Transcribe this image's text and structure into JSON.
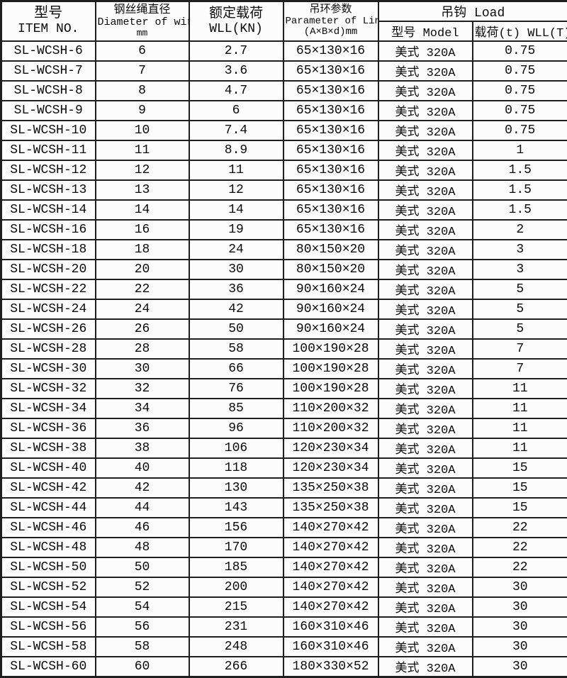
{
  "colors": {
    "border": "#1f1f1f",
    "background": "#fcfcfc",
    "text": "#0a0a0a"
  },
  "table": {
    "header": {
      "item_no": {
        "line1": "型号",
        "line2": "ITEM NO."
      },
      "diameter": {
        "line1": "钢丝绳直径",
        "line2": "Diameter of wire",
        "line3": "mm"
      },
      "wll": {
        "line1": "额定载荷",
        "line2": "WLL(KN)"
      },
      "link": {
        "line1": "吊环参数",
        "line2": "Parameter of Link",
        "line3": "(A×B×d)mm"
      },
      "hook_group": "吊钩 Load",
      "hook_model": "型号 Model",
      "hook_load": "载荷(t) WLL(T)"
    },
    "rows": [
      {
        "item_no": "SL-WCSH-6",
        "diameter": "6",
        "wll_kn": "2.7",
        "link_params": "65×130×16",
        "hook_model": "美式 320A",
        "hook_load": "0.75"
      },
      {
        "item_no": "SL-WCSH-7",
        "diameter": "7",
        "wll_kn": "3.6",
        "link_params": "65×130×16",
        "hook_model": "美式 320A",
        "hook_load": "0.75"
      },
      {
        "item_no": "SL-WCSH-8",
        "diameter": "8",
        "wll_kn": "4.7",
        "link_params": "65×130×16",
        "hook_model": "美式 320A",
        "hook_load": "0.75"
      },
      {
        "item_no": "SL-WCSH-9",
        "diameter": "9",
        "wll_kn": "6",
        "link_params": "65×130×16",
        "hook_model": "美式 320A",
        "hook_load": "0.75"
      },
      {
        "item_no": "SL-WCSH-10",
        "diameter": "10",
        "wll_kn": "7.4",
        "link_params": "65×130×16",
        "hook_model": "美式 320A",
        "hook_load": "0.75"
      },
      {
        "item_no": "SL-WCSH-11",
        "diameter": "11",
        "wll_kn": "8.9",
        "link_params": "65×130×16",
        "hook_model": "美式 320A",
        "hook_load": "1"
      },
      {
        "item_no": "SL-WCSH-12",
        "diameter": "12",
        "wll_kn": "11",
        "link_params": "65×130×16",
        "hook_model": "美式 320A",
        "hook_load": "1.5"
      },
      {
        "item_no": "SL-WCSH-13",
        "diameter": "13",
        "wll_kn": "12",
        "link_params": "65×130×16",
        "hook_model": "美式 320A",
        "hook_load": "1.5"
      },
      {
        "item_no": "SL-WCSH-14",
        "diameter": "14",
        "wll_kn": "14",
        "link_params": "65×130×16",
        "hook_model": "美式 320A",
        "hook_load": "1.5"
      },
      {
        "item_no": "SL-WCSH-16",
        "diameter": "16",
        "wll_kn": "19",
        "link_params": "65×130×16",
        "hook_model": "美式 320A",
        "hook_load": "2"
      },
      {
        "item_no": "SL-WCSH-18",
        "diameter": "18",
        "wll_kn": "24",
        "link_params": "80×150×20",
        "hook_model": "美式 320A",
        "hook_load": "3"
      },
      {
        "item_no": "SL-WCSH-20",
        "diameter": "20",
        "wll_kn": "30",
        "link_params": "80×150×20",
        "hook_model": "美式 320A",
        "hook_load": "3"
      },
      {
        "item_no": "SL-WCSH-22",
        "diameter": "22",
        "wll_kn": "36",
        "link_params": "90×160×24",
        "hook_model": "美式 320A",
        "hook_load": "5"
      },
      {
        "item_no": "SL-WCSH-24",
        "diameter": "24",
        "wll_kn": "42",
        "link_params": "90×160×24",
        "hook_model": "美式 320A",
        "hook_load": "5"
      },
      {
        "item_no": "SL-WCSH-26",
        "diameter": "26",
        "wll_kn": "50",
        "link_params": "90×160×24",
        "hook_model": "美式 320A",
        "hook_load": "5"
      },
      {
        "item_no": "SL-WCSH-28",
        "diameter": "28",
        "wll_kn": "58",
        "link_params": "100×190×28",
        "hook_model": "美式 320A",
        "hook_load": "7"
      },
      {
        "item_no": "SL-WCSH-30",
        "diameter": "30",
        "wll_kn": "66",
        "link_params": "100×190×28",
        "hook_model": "美式 320A",
        "hook_load": "7"
      },
      {
        "item_no": "SL-WCSH-32",
        "diameter": "32",
        "wll_kn": "76",
        "link_params": "100×190×28",
        "hook_model": "美式 320A",
        "hook_load": "11"
      },
      {
        "item_no": "SL-WCSH-34",
        "diameter": "34",
        "wll_kn": "85",
        "link_params": "110×200×32",
        "hook_model": "美式 320A",
        "hook_load": "11"
      },
      {
        "item_no": "SL-WCSH-36",
        "diameter": "36",
        "wll_kn": "96",
        "link_params": "110×200×32",
        "hook_model": "美式 320A",
        "hook_load": "11"
      },
      {
        "item_no": "SL-WCSH-38",
        "diameter": "38",
        "wll_kn": "106",
        "link_params": "120×230×34",
        "hook_model": "美式 320A",
        "hook_load": "11"
      },
      {
        "item_no": "SL-WCSH-40",
        "diameter": "40",
        "wll_kn": "118",
        "link_params": "120×230×34",
        "hook_model": "美式 320A",
        "hook_load": "15"
      },
      {
        "item_no": "SL-WCSH-42",
        "diameter": "42",
        "wll_kn": "130",
        "link_params": "135×250×38",
        "hook_model": "美式 320A",
        "hook_load": "15"
      },
      {
        "item_no": "SL-WCSH-44",
        "diameter": "44",
        "wll_kn": "143",
        "link_params": "135×250×38",
        "hook_model": "美式 320A",
        "hook_load": "15"
      },
      {
        "item_no": "SL-WCSH-46",
        "diameter": "46",
        "wll_kn": "156",
        "link_params": "140×270×42",
        "hook_model": "美式 320A",
        "hook_load": "22"
      },
      {
        "item_no": "SL-WCSH-48",
        "diameter": "48",
        "wll_kn": "170",
        "link_params": "140×270×42",
        "hook_model": "美式 320A",
        "hook_load": "22"
      },
      {
        "item_no": "SL-WCSH-50",
        "diameter": "50",
        "wll_kn": "185",
        "link_params": "140×270×42",
        "hook_model": "美式 320A",
        "hook_load": "22"
      },
      {
        "item_no": "SL-WCSH-52",
        "diameter": "52",
        "wll_kn": "200",
        "link_params": "140×270×42",
        "hook_model": "美式 320A",
        "hook_load": "30"
      },
      {
        "item_no": "SL-WCSH-54",
        "diameter": "54",
        "wll_kn": "215",
        "link_params": "140×270×42",
        "hook_model": "美式 320A",
        "hook_load": "30"
      },
      {
        "item_no": "SL-WCSH-56",
        "diameter": "56",
        "wll_kn": "231",
        "link_params": "160×310×46",
        "hook_model": "美式 320A",
        "hook_load": "30"
      },
      {
        "item_no": "SL-WCSH-58",
        "diameter": "58",
        "wll_kn": "248",
        "link_params": "160×310×46",
        "hook_model": "美式 320A",
        "hook_load": "30"
      },
      {
        "item_no": "SL-WCSH-60",
        "diameter": "60",
        "wll_kn": "266",
        "link_params": "180×330×52",
        "hook_model": "美式 320A",
        "hook_load": "30"
      }
    ]
  }
}
